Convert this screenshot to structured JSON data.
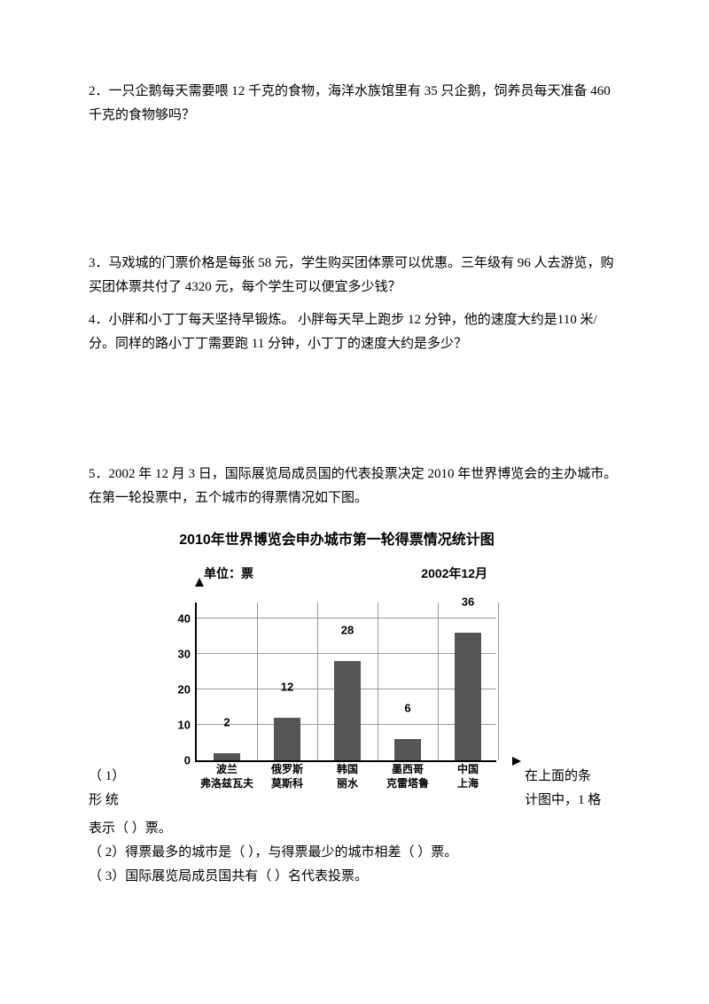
{
  "q2": "2．一只企鹅每天需要喂 12 千克的食物，海洋水族馆里有 35 只企鹅，饲养员每天准备 460 千克的食物够吗？",
  "q3": "3．马戏城的门票价格是每张 58 元，学生购买团体票可以优惠。三年级有 96 人去游览，购买团体票共付了 4320 元，每个学生可以便宜多少钱？",
  "q4": "4．小胖和小丁丁每天坚持早锻炼。 小胖每天早上跑步  12 分钟，他的速度大约是110 米/ 分。同样的路小丁丁需要跑   11 分钟，小丁丁的速度大约是多少？",
  "q5": "5．2002 年 12 月 3 日，国际展览局成员国的代表投票决定 2010 年世界博览会的主办城市。在第一轮投票中，五个城市的得票情况如下图。",
  "chart": {
    "title": "2010年世界博览会申办城市第一轮得票情况统计图",
    "ylabel": "单位：票",
    "date": "2002年12月",
    "ymax": 45,
    "yticks": [
      0,
      10,
      20,
      30,
      40
    ],
    "categories": [
      {
        "line1": "波兰",
        "line2": "弗洛兹瓦夫"
      },
      {
        "line1": "俄罗斯",
        "line2": "莫斯科"
      },
      {
        "line1": "韩国",
        "line2": "丽水"
      },
      {
        "line1": "墨西哥",
        "line2": "克雷塔鲁"
      },
      {
        "line1": "中国",
        "line2": "上海"
      }
    ],
    "values": [
      2,
      12,
      28,
      6,
      36
    ],
    "bar_color": "#555555",
    "grid_color": "#999999"
  },
  "fill": {
    "q1_pre": "（ 1）",
    "q1_right_a": "在上面的条",
    "q1_line2_left": "形  统",
    "q1_line2_right": "计图中，1 格",
    "q1_line3": "表示（             ）票。",
    "q2": "（ 2）得票最多的城市是（              ），与得票最少的城市相差（         ）票。",
    "q3": "（ 3）国际展览局成员国共有（               ）名代表投票。"
  }
}
